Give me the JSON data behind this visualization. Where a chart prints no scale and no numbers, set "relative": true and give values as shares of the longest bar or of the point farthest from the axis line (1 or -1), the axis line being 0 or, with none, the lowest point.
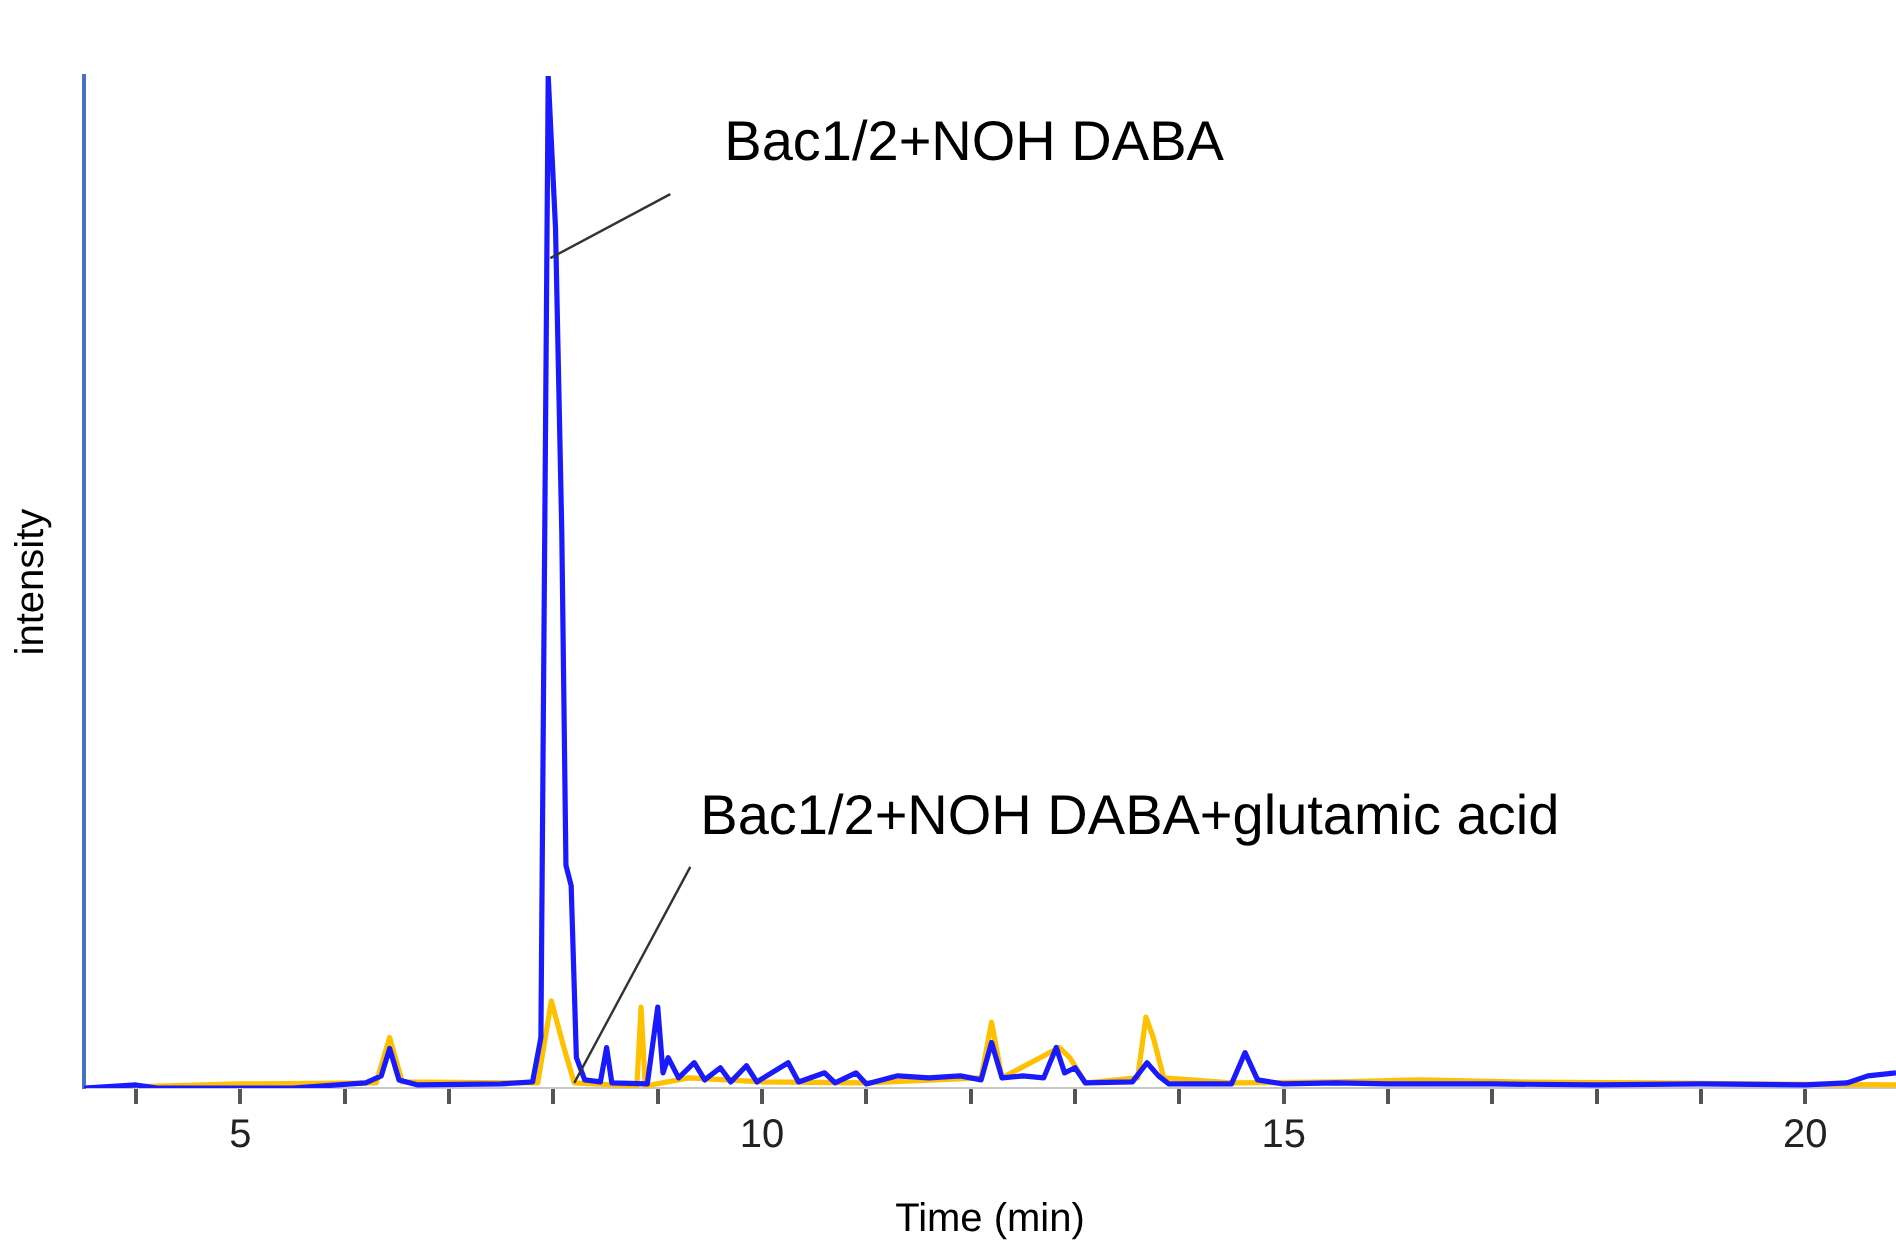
{
  "chart_data": {
    "type": "line",
    "xlabel": "Time (min)",
    "ylabel": "intensity",
    "relative": true,
    "grid": false,
    "legend": false,
    "marker": "none",
    "line_style": "solid",
    "xlim": [
      3.5,
      20.87
    ],
    "xticks": [
      {
        "value": 4,
        "label": null
      },
      5,
      {
        "value": 6,
        "label": null
      },
      {
        "value": 7,
        "label": null
      },
      {
        "value": 8,
        "label": null
      },
      {
        "value": 9,
        "label": null
      },
      10,
      {
        "value": 11,
        "label": null
      },
      {
        "value": 12,
        "label": null
      },
      {
        "value": 13,
        "label": null
      },
      {
        "value": 14,
        "label": null
      },
      15,
      {
        "value": 16,
        "label": null
      },
      {
        "value": 17,
        "label": null
      },
      {
        "value": 18,
        "label": null
      },
      {
        "value": 19,
        "label": null
      },
      20
    ],
    "series": [
      {
        "color": "#1a1aff",
        "x": [
          3.5,
          4.0,
          4.2,
          5.5,
          6.2,
          6.35,
          6.43,
          6.52,
          6.7,
          7.5,
          7.8,
          7.88,
          7.95,
          8.02,
          8.08,
          8.12,
          8.17,
          8.22,
          8.3,
          8.45,
          8.51,
          8.56,
          8.9,
          9.0,
          9.05,
          9.1,
          9.2,
          9.35,
          9.45,
          9.6,
          9.7,
          9.85,
          9.95,
          10.25,
          10.35,
          10.6,
          10.7,
          10.9,
          11.0,
          11.3,
          11.6,
          11.9,
          12.1,
          12.2,
          12.3,
          12.5,
          12.7,
          12.82,
          12.9,
          13.0,
          13.1,
          13.55,
          13.69,
          13.8,
          13.9,
          14.5,
          14.63,
          14.75,
          15.0,
          15.5,
          16.0,
          17.0,
          18.0,
          19.0,
          20.0,
          20.4,
          20.6,
          20.87
        ],
        "values": [
          0,
          0.003,
          0,
          0,
          0.005,
          0.012,
          0.039,
          0.008,
          0.003,
          0.004,
          0.006,
          0.05,
          1,
          0.85,
          0.55,
          0.22,
          0.2,
          0.03,
          0.008,
          0.006,
          0.04,
          0.005,
          0.004,
          0.08,
          0.015,
          0.03,
          0.01,
          0.025,
          0.008,
          0.02,
          0.006,
          0.022,
          0.006,
          0.025,
          0.006,
          0.015,
          0.005,
          0.015,
          0.004,
          0.012,
          0.01,
          0.012,
          0.008,
          0.045,
          0.01,
          0.012,
          0.01,
          0.04,
          0.015,
          0.02,
          0.005,
          0.006,
          0.025,
          0.012,
          0.004,
          0.004,
          0.035,
          0.008,
          0.004,
          0.005,
          0.004,
          0.004,
          0.003,
          0.004,
          0.003,
          0.005,
          0.012,
          0.015
        ]
      },
      {
        "color": "#ffc000",
        "x": [
          3.5,
          5.0,
          6.3,
          6.43,
          6.55,
          7.85,
          7.98,
          8.1,
          8.2,
          8.8,
          8.84,
          8.88,
          9.3,
          10.0,
          11.0,
          12.1,
          12.2,
          12.3,
          12.85,
          12.95,
          13.1,
          13.6,
          13.68,
          13.75,
          13.85,
          14.5,
          15.5,
          16.3,
          17.2,
          18.5,
          20.87
        ],
        "values": [
          0,
          0.004,
          0.005,
          0.05,
          0.006,
          0.005,
          0.086,
          0.04,
          0.005,
          0.002,
          0.08,
          0.002,
          0.01,
          0.006,
          0.005,
          0.01,
          0.065,
          0.01,
          0.04,
          0.03,
          0.005,
          0.01,
          0.07,
          0.05,
          0.01,
          0.005,
          0.006,
          0.008,
          0.006,
          0.005,
          0.003
        ]
      }
    ],
    "annotations": [
      {
        "text": "Bac1/2+NOH DABA",
        "x": 7.97,
        "y": 0.82
      },
      {
        "text": "Bac1/2+NOH DABA+glutamic acid",
        "x": 8.2,
        "y": 0.005
      }
    ]
  }
}
